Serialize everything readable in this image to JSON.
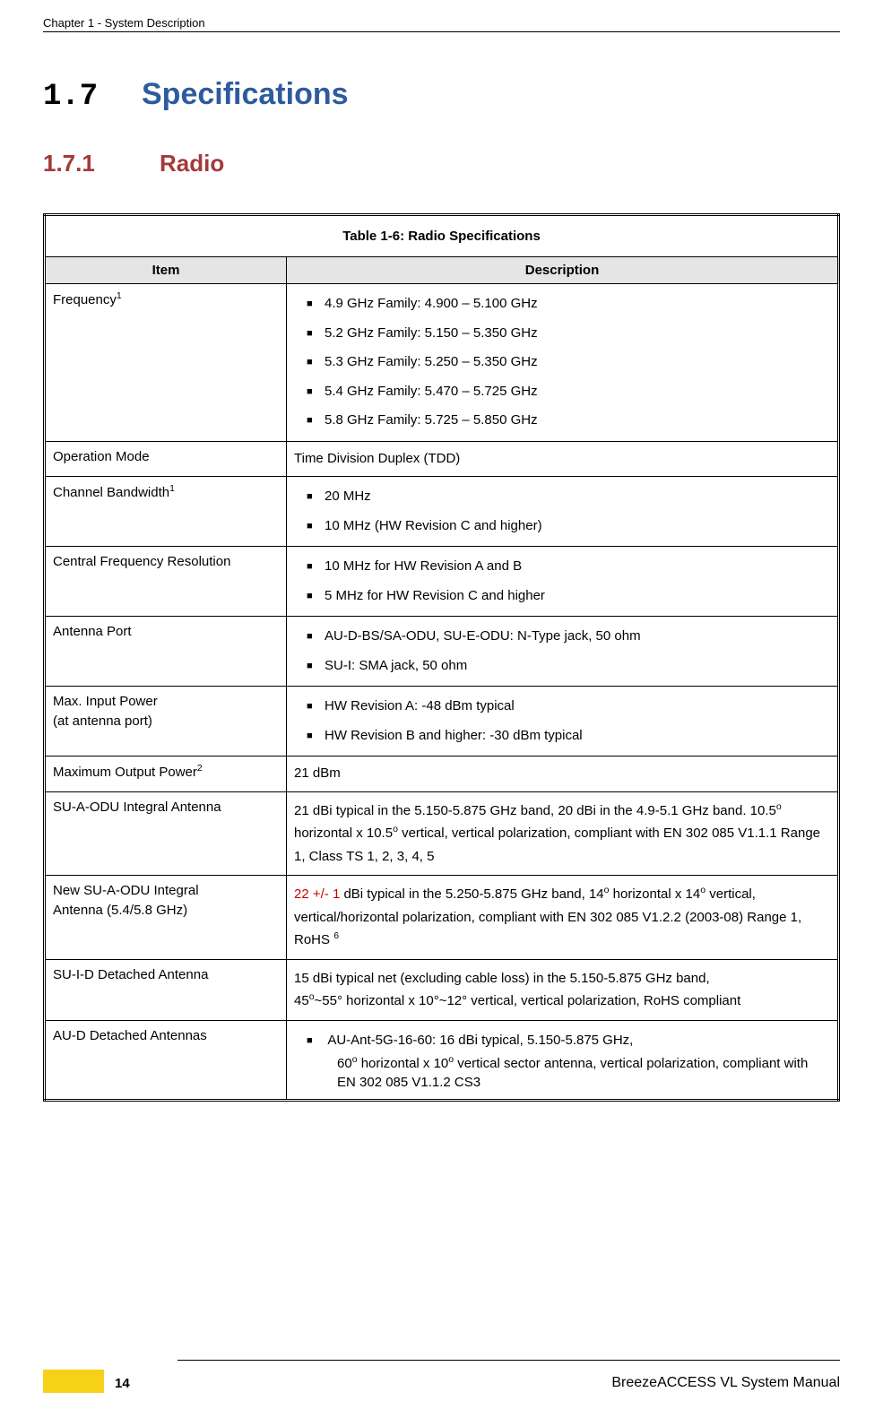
{
  "header": {
    "chapter": "Chapter 1 - System Description"
  },
  "section": {
    "num": "1.7",
    "title": "Specifications"
  },
  "subsection": {
    "num": "1.7.1",
    "title": "Radio"
  },
  "table": {
    "caption": "Table 1-6: Radio Specifications",
    "col1": "Item",
    "col2": "Description",
    "rows": {
      "frequency": {
        "item": "Frequency",
        "sup": "1",
        "bullets": [
          "4.9 GHz Family: 4.900 – 5.100 GHz",
          "5.2 GHz Family: 5.150 – 5.350 GHz",
          "5.3 GHz Family: 5.250 – 5.350 GHz",
          "5.4 GHz Family: 5.470 – 5.725 GHz",
          "5.8 GHz Family: 5.725 – 5.850 GHz"
        ]
      },
      "opmode": {
        "item": "Operation Mode",
        "desc": "Time Division Duplex (TDD)"
      },
      "chbw": {
        "item": "Channel Bandwidth",
        "sup": "1",
        "bullets": [
          "20 MHz",
          "10 MHz (HW Revision C and higher)"
        ]
      },
      "cfr": {
        "item": "Central Frequency Resolution",
        "bullets": [
          "10 MHz for HW Revision A and B",
          "5 MHz for HW Revision C and higher"
        ]
      },
      "antport": {
        "item": "Antenna Port",
        "bullets": [
          "AU-D-BS/SA-ODU, SU-E-ODU: N-Type jack, 50 ohm",
          "SU-I: SMA jack, 50 ohm"
        ]
      },
      "maxin": {
        "item_l1": "Max. Input Power",
        "item_l2": "(at antenna port)",
        "bullets": [
          "HW Revision A: -48 dBm typical",
          "HW Revision B and higher: -30 dBm typical"
        ]
      },
      "maxout": {
        "item": "Maximum Output Power",
        "sup": "2",
        "desc": "21 dBm"
      },
      "sua": {
        "item": "SU-A-ODU Integral Antenna",
        "desc_pre": "21 dBi typical in the 5.150-5.875 GHz band, 20 dBi in the 4.9-5.1 GHz band. 10.5",
        "desc_mid1": " horizontal x 10.5",
        "desc_post": " vertical, vertical polarization, compliant with EN 302 085 V1.1.1 Range 1, Class TS 1, 2, 3, 4, 5"
      },
      "newsua": {
        "item_l1": "New SU-A-ODU Integral",
        "item_l2": "Antenna (5.4/5.8 GHz)",
        "red": "22 +/- 1",
        "desc_a": " dBi typical in the 5.250-5.875 GHz band, 14",
        "desc_b": " horizontal x 14",
        "desc_c": " vertical, vertical/horizontal polarization, compliant with EN 302 085 V1.2.2 (2003-08) Range 1, RoHS ",
        "sup6": "6"
      },
      "suid": {
        "item": "SU-I-D Detached Antenna",
        "desc_a": "15 dBi typical net (excluding cable loss) in the 5.150-5.875 GHz band,",
        "desc_b_pre": "45",
        "desc_b_post": "~55° horizontal x 10°~12° vertical, vertical polarization, RoHS compliant"
      },
      "aud": {
        "item": "AU-D Detached Antennas",
        "bullet_l1_a": "AU-Ant-5G-16-60: 16 dBi typical, 5.150-5.875 GHz,",
        "bullet_l2_pre": "60",
        "bullet_l2_mid": " horizontal x 10",
        "bullet_l2_post": " vertical sector antenna, vertical polarization, compliant with EN 302 085 V1.1.2 CS3"
      }
    }
  },
  "footer": {
    "page": "14",
    "manual": "BreezeACCESS VL System Manual"
  },
  "deg": "o"
}
